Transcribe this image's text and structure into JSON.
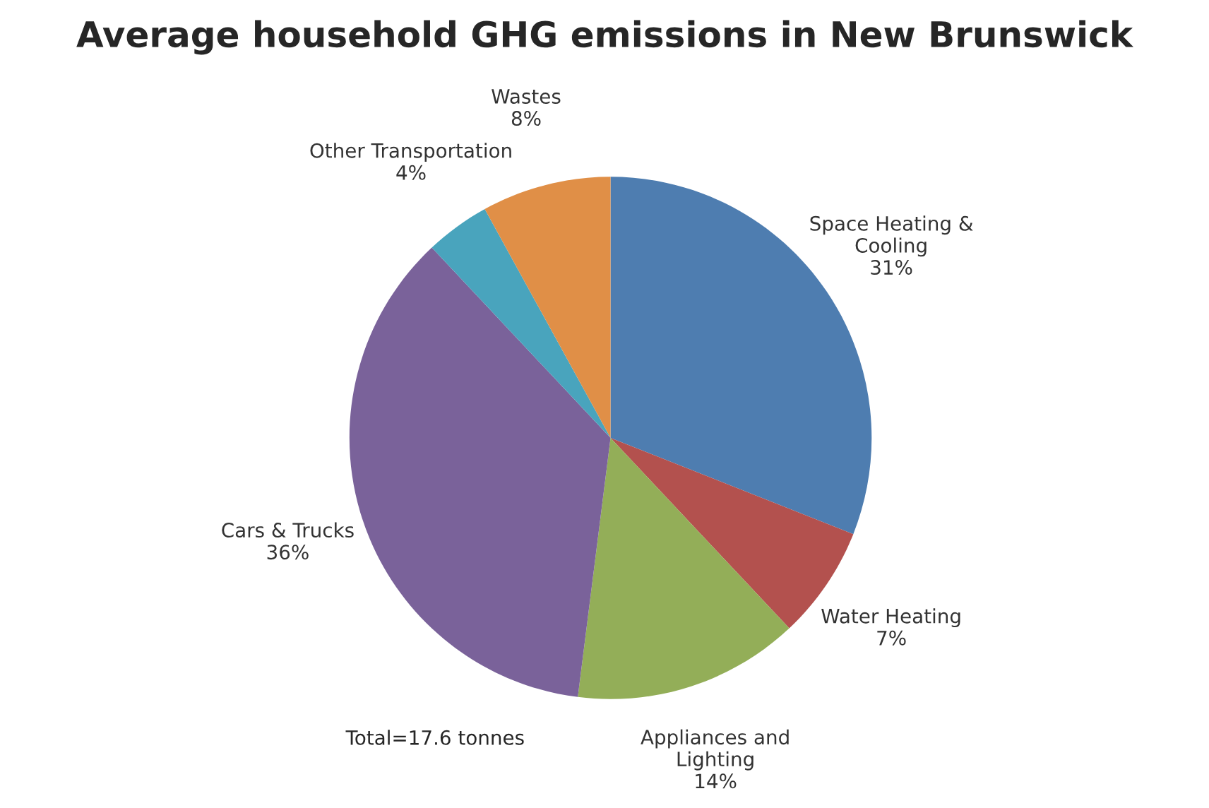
{
  "chart_data": {
    "type": "pie",
    "title": "Average household GHG emissions in New Brunswick",
    "categories": [
      "Space Heating &\nCooling",
      "Water Heating",
      "Appliances and\nLighting",
      "Cars & Trucks",
      "Other Transportation",
      "Wastes"
    ],
    "values": [
      31,
      7,
      14,
      36,
      4,
      8
    ],
    "value_labels": [
      "31%",
      "7%",
      "14%",
      "36%",
      "4%",
      "8%"
    ],
    "colors": [
      "#4e7db0",
      "#b3514e",
      "#93ae58",
      "#7a629a",
      "#49a4bd",
      "#e08f47"
    ],
    "annotations": [
      "Total=17.6 tonnes"
    ]
  }
}
